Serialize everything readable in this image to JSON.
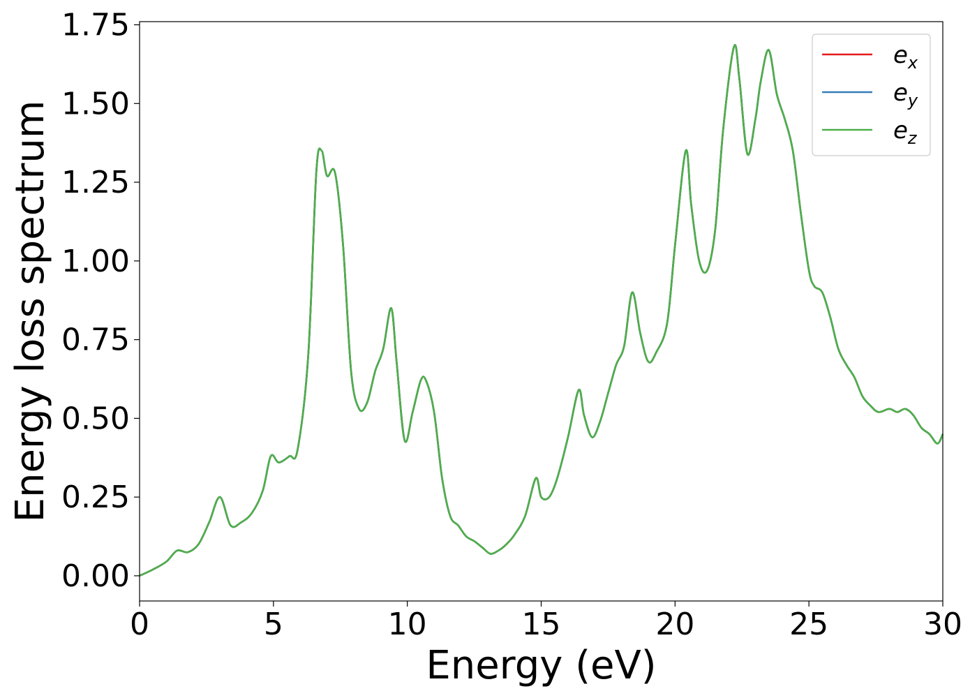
{
  "chart_data": {
    "type": "line",
    "xlabel": "Energy (eV)",
    "ylabel": "Energy loss spectrum",
    "xlim": [
      0,
      30
    ],
    "ylim": [
      -0.08,
      1.76
    ],
    "xticks": [
      0,
      5,
      10,
      15,
      20,
      25,
      30
    ],
    "yticks": [
      0.0,
      0.25,
      0.5,
      0.75,
      1.0,
      1.25,
      1.5,
      1.75
    ],
    "xtick_labels": [
      "0",
      "5",
      "10",
      "15",
      "20",
      "25",
      "30"
    ],
    "ytick_labels": [
      "0.00",
      "0.25",
      "0.50",
      "0.75",
      "1.00",
      "1.25",
      "1.50",
      "1.75"
    ],
    "grid": false,
    "legend": "top-right",
    "x": [
      0,
      0.5,
      1.0,
      1.4,
      1.8,
      2.2,
      2.6,
      3.0,
      3.4,
      3.8,
      4.2,
      4.6,
      4.9,
      5.2,
      5.6,
      5.9,
      6.3,
      6.6,
      6.8,
      7.0,
      7.3,
      7.6,
      7.9,
      8.2,
      8.5,
      8.8,
      9.1,
      9.4,
      9.6,
      9.9,
      10.2,
      10.5,
      10.7,
      11.0,
      11.3,
      11.6,
      11.9,
      12.2,
      12.5,
      12.8,
      13.1,
      13.4,
      13.7,
      14.0,
      14.4,
      14.8,
      15.0,
      15.3,
      15.6,
      16.0,
      16.4,
      16.6,
      16.9,
      17.2,
      17.5,
      17.8,
      18.1,
      18.4,
      18.7,
      19.0,
      19.3,
      19.7,
      20.0,
      20.4,
      20.6,
      20.9,
      21.2,
      21.5,
      21.8,
      22.2,
      22.4,
      22.7,
      23.0,
      23.2,
      23.5,
      23.8,
      24.1,
      24.4,
      24.7,
      25.0,
      25.2,
      25.5,
      25.8,
      26.1,
      26.4,
      26.7,
      27.0,
      27.3,
      27.6,
      28.0,
      28.3,
      28.6,
      28.9,
      29.2,
      29.5,
      29.8,
      30.0
    ],
    "series": [
      {
        "name": "e_x",
        "color": "#e41a1c",
        "values": [
          0.0,
          0.02,
          0.045,
          0.08,
          0.075,
          0.1,
          0.17,
          0.25,
          0.16,
          0.17,
          0.2,
          0.27,
          0.38,
          0.36,
          0.38,
          0.4,
          0.7,
          1.28,
          1.35,
          1.27,
          1.28,
          1.05,
          0.65,
          0.53,
          0.55,
          0.65,
          0.72,
          0.85,
          0.68,
          0.43,
          0.52,
          0.62,
          0.62,
          0.52,
          0.31,
          0.19,
          0.16,
          0.125,
          0.11,
          0.09,
          0.07,
          0.08,
          0.1,
          0.13,
          0.19,
          0.31,
          0.25,
          0.25,
          0.31,
          0.44,
          0.59,
          0.51,
          0.44,
          0.49,
          0.58,
          0.67,
          0.73,
          0.9,
          0.77,
          0.68,
          0.71,
          0.8,
          1.05,
          1.35,
          1.18,
          1.0,
          0.97,
          1.1,
          1.42,
          1.68,
          1.58,
          1.34,
          1.45,
          1.57,
          1.67,
          1.53,
          1.45,
          1.35,
          1.15,
          0.97,
          0.92,
          0.9,
          0.82,
          0.72,
          0.67,
          0.63,
          0.57,
          0.54,
          0.52,
          0.53,
          0.52,
          0.53,
          0.51,
          0.47,
          0.45,
          0.42,
          0.45
        ]
      },
      {
        "name": "e_y",
        "color": "#377eb8",
        "values": [
          0.0,
          0.02,
          0.045,
          0.08,
          0.075,
          0.1,
          0.17,
          0.25,
          0.16,
          0.17,
          0.2,
          0.27,
          0.38,
          0.36,
          0.38,
          0.4,
          0.7,
          1.28,
          1.35,
          1.27,
          1.28,
          1.05,
          0.65,
          0.53,
          0.55,
          0.65,
          0.72,
          0.85,
          0.68,
          0.43,
          0.52,
          0.62,
          0.62,
          0.52,
          0.31,
          0.19,
          0.16,
          0.125,
          0.11,
          0.09,
          0.07,
          0.08,
          0.1,
          0.13,
          0.19,
          0.31,
          0.25,
          0.25,
          0.31,
          0.44,
          0.59,
          0.51,
          0.44,
          0.49,
          0.58,
          0.67,
          0.73,
          0.9,
          0.77,
          0.68,
          0.71,
          0.8,
          1.05,
          1.35,
          1.18,
          1.0,
          0.97,
          1.1,
          1.42,
          1.68,
          1.58,
          1.34,
          1.45,
          1.57,
          1.67,
          1.53,
          1.45,
          1.35,
          1.15,
          0.97,
          0.92,
          0.9,
          0.82,
          0.72,
          0.67,
          0.63,
          0.57,
          0.54,
          0.52,
          0.53,
          0.52,
          0.53,
          0.51,
          0.47,
          0.45,
          0.42,
          0.45
        ]
      },
      {
        "name": "e_z",
        "color": "#4daf4a",
        "values": [
          0.0,
          0.02,
          0.045,
          0.08,
          0.075,
          0.1,
          0.17,
          0.25,
          0.16,
          0.17,
          0.2,
          0.27,
          0.38,
          0.36,
          0.38,
          0.4,
          0.7,
          1.28,
          1.35,
          1.27,
          1.28,
          1.05,
          0.65,
          0.53,
          0.55,
          0.65,
          0.72,
          0.85,
          0.68,
          0.43,
          0.52,
          0.62,
          0.62,
          0.52,
          0.31,
          0.19,
          0.16,
          0.125,
          0.11,
          0.09,
          0.07,
          0.08,
          0.1,
          0.13,
          0.19,
          0.31,
          0.25,
          0.25,
          0.31,
          0.44,
          0.59,
          0.51,
          0.44,
          0.49,
          0.58,
          0.67,
          0.73,
          0.9,
          0.77,
          0.68,
          0.71,
          0.8,
          1.05,
          1.35,
          1.18,
          1.0,
          0.97,
          1.1,
          1.42,
          1.68,
          1.58,
          1.34,
          1.45,
          1.57,
          1.67,
          1.53,
          1.45,
          1.35,
          1.15,
          0.97,
          0.92,
          0.9,
          0.82,
          0.72,
          0.67,
          0.63,
          0.57,
          0.54,
          0.52,
          0.53,
          0.52,
          0.53,
          0.51,
          0.47,
          0.45,
          0.42,
          0.45
        ]
      }
    ],
    "legend_entries": [
      {
        "base": "e",
        "sub": "x",
        "color": "#e41a1c"
      },
      {
        "base": "e",
        "sub": "y",
        "color": "#377eb8"
      },
      {
        "base": "e",
        "sub": "z",
        "color": "#4daf4a"
      }
    ]
  }
}
